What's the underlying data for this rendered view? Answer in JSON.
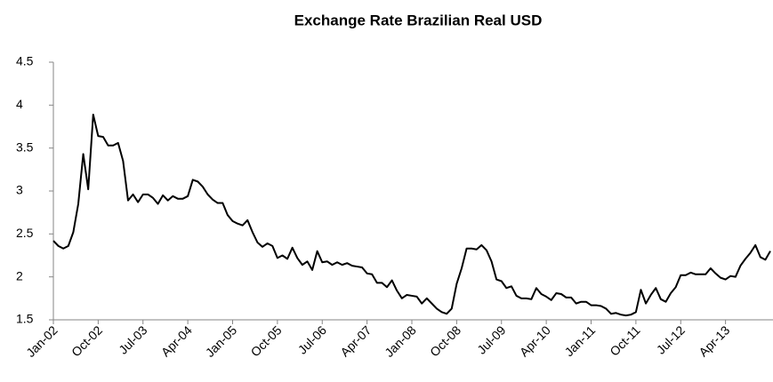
{
  "chart_data": {
    "type": "line",
    "title": "Exchange Rate Brazilian Real USD",
    "categories": [
      "Jan-02",
      null,
      null,
      null,
      null,
      null,
      null,
      null,
      null,
      "Oct-02",
      null,
      null,
      null,
      null,
      null,
      null,
      null,
      null,
      "Jul-03",
      null,
      null,
      null,
      null,
      null,
      null,
      null,
      null,
      "Apr-04",
      null,
      null,
      null,
      null,
      null,
      null,
      null,
      null,
      "Jan-05",
      null,
      null,
      null,
      null,
      null,
      null,
      null,
      null,
      "Oct-05",
      null,
      null,
      null,
      null,
      null,
      null,
      null,
      null,
      "Jul-06",
      null,
      null,
      null,
      null,
      null,
      null,
      null,
      null,
      "Apr-07",
      null,
      null,
      null,
      null,
      null,
      null,
      null,
      null,
      "Jan-08",
      null,
      null,
      null,
      null,
      null,
      null,
      null,
      null,
      "Oct-08",
      null,
      null,
      null,
      null,
      null,
      null,
      null,
      null,
      "Jul-09",
      null,
      null,
      null,
      null,
      null,
      null,
      null,
      null,
      "Apr-10",
      null,
      null,
      null,
      null,
      null,
      null,
      null,
      null,
      "Jan-11",
      null,
      null,
      null,
      null,
      null,
      null,
      null,
      null,
      "Oct-11",
      null,
      null,
      null,
      null,
      null,
      null,
      null,
      null,
      "Jul-12",
      null,
      null,
      null,
      null,
      null,
      null,
      null,
      null,
      "Apr-13",
      null,
      null,
      null,
      null,
      null,
      null,
      null,
      null,
      null
    ],
    "values": [
      2.42,
      2.36,
      2.33,
      2.36,
      2.52,
      2.85,
      3.43,
      3.02,
      3.89,
      3.64,
      3.63,
      3.53,
      3.53,
      3.56,
      3.35,
      2.89,
      2.96,
      2.87,
      2.96,
      2.96,
      2.92,
      2.85,
      2.95,
      2.89,
      2.94,
      2.91,
      2.91,
      2.94,
      3.13,
      3.11,
      3.05,
      2.96,
      2.9,
      2.86,
      2.86,
      2.72,
      2.65,
      2.62,
      2.6,
      2.66,
      2.52,
      2.4,
      2.35,
      2.39,
      2.36,
      2.22,
      2.25,
      2.21,
      2.34,
      2.22,
      2.14,
      2.18,
      2.08,
      2.3,
      2.17,
      2.18,
      2.14,
      2.17,
      2.14,
      2.16,
      2.13,
      2.12,
      2.11,
      2.04,
      2.03,
      1.93,
      1.93,
      1.88,
      1.96,
      1.84,
      1.75,
      1.79,
      1.78,
      1.77,
      1.69,
      1.75,
      1.69,
      1.63,
      1.59,
      1.57,
      1.63,
      1.92,
      2.1,
      2.33,
      2.33,
      2.32,
      2.37,
      2.31,
      2.18,
      1.97,
      1.95,
      1.87,
      1.89,
      1.78,
      1.75,
      1.75,
      1.74,
      1.87,
      1.8,
      1.77,
      1.73,
      1.81,
      1.8,
      1.76,
      1.76,
      1.69,
      1.71,
      1.71,
      1.67,
      1.67,
      1.66,
      1.63,
      1.57,
      1.58,
      1.56,
      1.55,
      1.56,
      1.59,
      1.85,
      1.69,
      1.79,
      1.87,
      1.74,
      1.71,
      1.81,
      1.88,
      2.02,
      2.02,
      2.05,
      2.03,
      2.03,
      2.03,
      2.1,
      2.04,
      1.99,
      1.97,
      2.01,
      2.0,
      2.13,
      2.21,
      2.28,
      2.37,
      2.23,
      2.2,
      2.3
    ],
    "color": "#000000",
    "ylim": [
      1.5,
      4.5
    ],
    "yticks": [
      1.5,
      2,
      2.5,
      3,
      3.5,
      4,
      4.5
    ],
    "grid": false
  }
}
